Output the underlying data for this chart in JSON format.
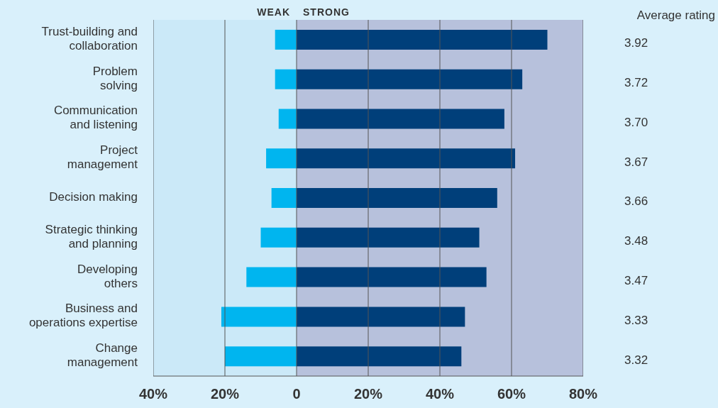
{
  "chart_data": {
    "type": "bar",
    "orientation": "horizontal",
    "stacked": true,
    "categories": [
      "Trust-building and\ncollaboration",
      "Problem\nsolving",
      "Communication\nand listening",
      "Project\nmanagement",
      "Decision making",
      "Strategic thinking\nand planning",
      "Developing\nothers",
      "Business and\noperations expertise",
      "Change\nmanagement"
    ],
    "series": [
      {
        "color": "#00b5ef",
        "values": [
          -6,
          -6,
          -5,
          -8.5,
          -7,
          -10,
          -14,
          -21,
          -20
        ]
      },
      {
        "color": "#003f7a",
        "values": [
          70,
          63,
          58,
          61,
          56,
          51,
          53,
          47,
          46
        ]
      }
    ],
    "xlim": [
      -40,
      80
    ],
    "xticks": [
      {
        "value": -40,
        "label": "40%"
      },
      {
        "value": -20,
        "label": "20%"
      },
      0,
      {
        "value": 20,
        "label": "20%"
      },
      {
        "value": 40,
        "label": "40%"
      },
      {
        "value": 60,
        "label": "60%"
      },
      {
        "value": 80,
        "label": "80%"
      }
    ],
    "grid": "x",
    "bands": [
      {
        "axis": "x",
        "from": -40,
        "to": 0,
        "label": "WEAK",
        "color": "#cbe9f8"
      },
      {
        "axis": "x",
        "from": 0,
        "to": 80,
        "label": "STRONG",
        "color": "#b7c1dc"
      }
    ],
    "annotations": [
      "Average rating",
      "3.92",
      "3.72",
      "3.70",
      "3.67",
      "3.66",
      "3.48",
      "3.47",
      "3.33",
      "3.32"
    ]
  }
}
